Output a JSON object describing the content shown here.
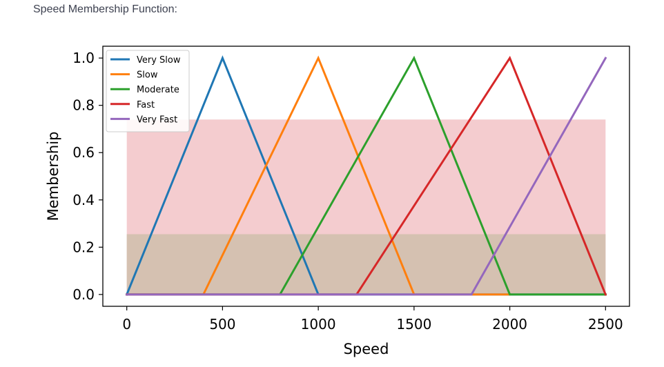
{
  "caption": "Speed Membership Function:",
  "chart_data": {
    "type": "line",
    "title": "",
    "xlabel": "Speed",
    "ylabel": "Membership",
    "xlim": [
      -125,
      2625
    ],
    "ylim": [
      -0.05,
      1.05
    ],
    "xticks": [
      0,
      500,
      1000,
      1500,
      2000,
      2500
    ],
    "yticks": [
      0.0,
      0.2,
      0.4,
      0.6,
      0.8,
      1.0
    ],
    "xtick_labels": [
      "0",
      "500",
      "1000",
      "1500",
      "2000",
      "2500"
    ],
    "ytick_labels": [
      "0.0",
      "0.2",
      "0.4",
      "0.6",
      "0.8",
      "1.0"
    ],
    "grid": false,
    "legend_position": "top-left",
    "series": [
      {
        "name": "Very Slow",
        "color": "#1f77b4",
        "x": [
          0,
          500,
          1000,
          2500
        ],
        "y": [
          0,
          1,
          0,
          0
        ]
      },
      {
        "name": "Slow",
        "color": "#ff7f0e",
        "x": [
          0,
          400,
          1000,
          1500,
          2000
        ],
        "y": [
          0,
          0,
          1,
          0,
          0
        ]
      },
      {
        "name": "Moderate",
        "color": "#2ca02c",
        "x": [
          0,
          800,
          1500,
          2000,
          2500
        ],
        "y": [
          0,
          0,
          1,
          0,
          0
        ]
      },
      {
        "name": "Fast",
        "color": "#d62728",
        "x": [
          0,
          1200,
          2000,
          2500
        ],
        "y": [
          0,
          0,
          1,
          0
        ]
      },
      {
        "name": "Very Fast",
        "color": "#9467bd",
        "x": [
          0,
          1800,
          2500
        ],
        "y": [
          0,
          0,
          1
        ]
      }
    ],
    "bands": [
      {
        "x": [
          0,
          2500
        ],
        "y": [
          0,
          0.74
        ],
        "color": "#f4cccf"
      },
      {
        "x": [
          0,
          2500
        ],
        "y": [
          0,
          0.255
        ],
        "color": "#d5c1b1"
      }
    ]
  }
}
